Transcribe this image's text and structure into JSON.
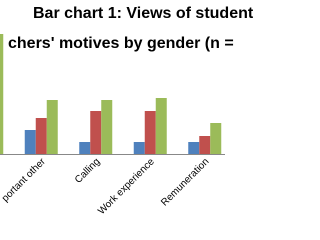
{
  "chart_data": {
    "type": "bar",
    "title": [
      "Bar chart 1: Views of student",
      "chers' motives by gender (n ="
    ],
    "categories": [
      null,
      "portant other",
      "Calling",
      "Work experience",
      "Remuneration"
    ],
    "series": [
      {
        "color": "#4f81bd",
        "values": [
          null,
          24,
          12,
          12,
          12
        ]
      },
      {
        "color": "#c0504d",
        "values": [
          null,
          36,
          43,
          43,
          18
        ]
      },
      {
        "color": "#9bbb59",
        "values": [
          120,
          54,
          54,
          56,
          31
        ]
      }
    ],
    "ylim": [
      0,
      120
    ]
  }
}
